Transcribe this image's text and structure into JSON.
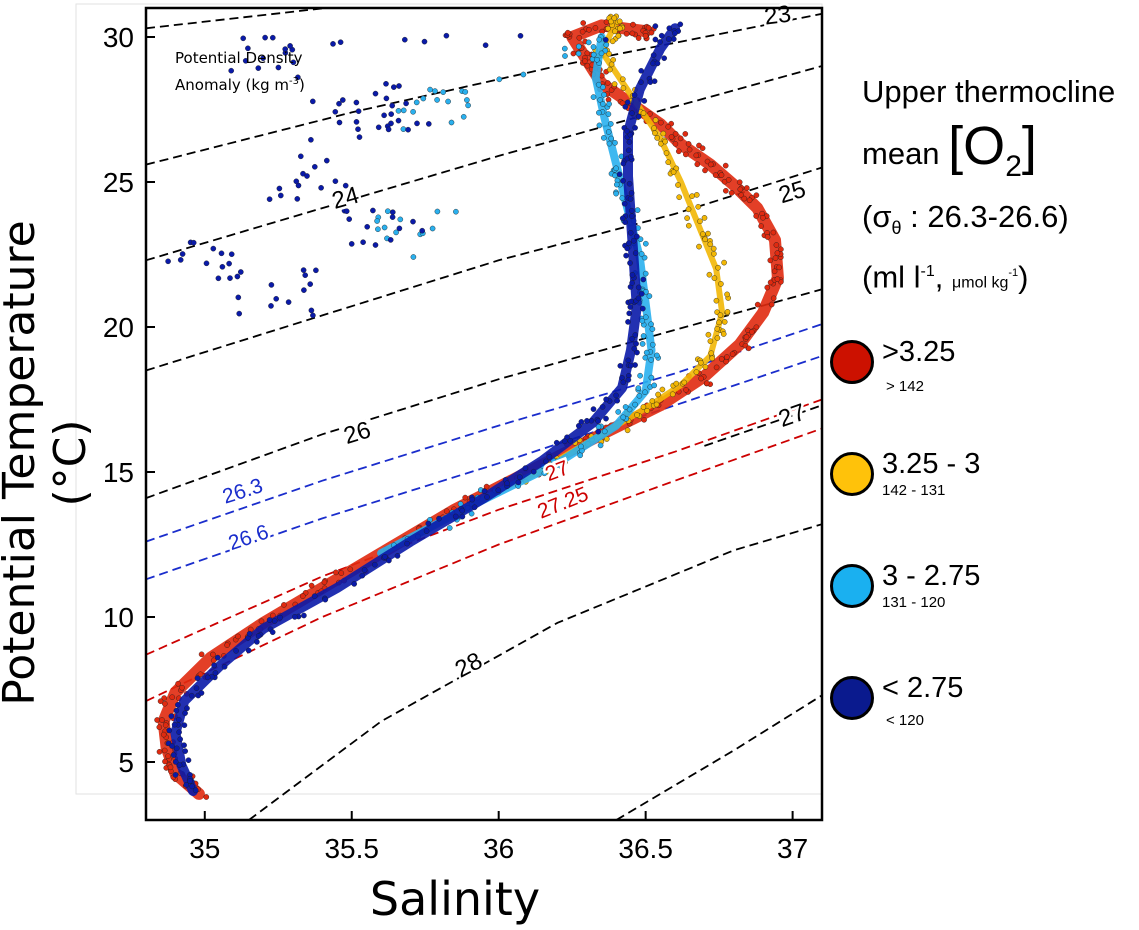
{
  "chart_data": {
    "type": "scatter",
    "title": "",
    "xlabel": "Salinity",
    "ylabel": "Potential Temperature (°C)",
    "xlim": [
      34.8,
      37.1
    ],
    "ylim": [
      3,
      31
    ],
    "x_ticks": [
      35,
      35.5,
      36,
      36.5,
      37
    ],
    "x_tick_labels": [
      "35",
      "35.5",
      "36",
      "36.5",
      "37"
    ],
    "y_ticks": [
      5,
      10,
      15,
      20,
      25,
      30
    ],
    "y_tick_labels": [
      "5",
      "10",
      "15",
      "20",
      "25",
      "30"
    ],
    "grid": false,
    "density_annotation": {
      "line1": "Potential Density",
      "line2": "Anomaly  (kg m",
      "sup": "-3",
      "close": ")"
    },
    "isopycnals": [
      {
        "label": "23",
        "color": "#000000",
        "points": [
          [
            34.8,
            30.3
          ],
          [
            35.5,
            31.1
          ],
          [
            36.1,
            31.5
          ],
          [
            36.7,
            32.6
          ],
          [
            37.1,
            33.2
          ]
        ],
        "label_at": [
          36.95,
          30.7
        ]
      },
      {
        "label": "",
        "color": "#000000",
        "points": [
          [
            34.8,
            25.6
          ],
          [
            35.5,
            27.4
          ],
          [
            36.2,
            29.0
          ],
          [
            36.9,
            30.4
          ],
          [
            37.1,
            30.8
          ]
        ]
      },
      {
        "label": "24",
        "color": "#000000",
        "points": [
          [
            34.8,
            22.3
          ],
          [
            35.4,
            24.1
          ],
          [
            36.0,
            25.9
          ],
          [
            36.6,
            27.6
          ],
          [
            37.1,
            29.0
          ]
        ],
        "label_at": [
          35.48,
          24.4
        ]
      },
      {
        "label": "25",
        "color": "#000000",
        "points": [
          [
            34.8,
            18.5
          ],
          [
            35.4,
            20.4
          ],
          [
            36.0,
            22.3
          ],
          [
            36.6,
            23.9
          ],
          [
            37.1,
            25.5
          ]
        ],
        "label_at": [
          37.0,
          24.6
        ]
      },
      {
        "label": "26",
        "color": "#000000",
        "points": [
          [
            34.8,
            14.1
          ],
          [
            35.4,
            16.3
          ],
          [
            36.0,
            18.2
          ],
          [
            36.6,
            19.9
          ],
          [
            37.1,
            21.3
          ]
        ],
        "label_at": [
          35.52,
          16.3
        ]
      },
      {
        "label": "26.3",
        "color": "#1a2dcc",
        "points": [
          [
            34.8,
            12.6
          ],
          [
            35.4,
            14.7
          ],
          [
            36.0,
            16.6
          ],
          [
            36.6,
            18.4
          ],
          [
            37.1,
            20.1
          ]
        ],
        "label_at": [
          35.13,
          14.3
        ]
      },
      {
        "label": "26.6",
        "color": "#1a2dcc",
        "points": [
          [
            34.8,
            11.3
          ],
          [
            35.4,
            13.4
          ],
          [
            36.0,
            15.3
          ],
          [
            36.6,
            17.3
          ],
          [
            37.1,
            19.0
          ]
        ],
        "label_at": [
          35.15,
          12.7
        ]
      },
      {
        "label": "27",
        "color": "#cc0000",
        "points": [
          [
            34.8,
            8.7
          ],
          [
            35.4,
            11.4
          ],
          [
            36.0,
            13.7
          ],
          [
            36.6,
            15.7
          ],
          [
            37.1,
            17.5
          ]
        ],
        "label_at": [
          36.2,
          15.0
        ]
      },
      {
        "label": "27.25",
        "color": "#cc0000",
        "points": [
          [
            34.8,
            7.1
          ],
          [
            35.4,
            10.0
          ],
          [
            36.0,
            12.5
          ],
          [
            36.6,
            14.7
          ],
          [
            37.1,
            16.5
          ]
        ],
        "label_at": [
          36.22,
          13.9
        ]
      },
      {
        "label": "27",
        "color": "#000000",
        "points": [
          [
            36.7,
            15.9
          ],
          [
            37.1,
            17.3
          ]
        ],
        "label_at": [
          37.0,
          16.9
        ]
      },
      {
        "label": "28",
        "color": "#000000",
        "points": [
          [
            35.15,
            3.0
          ],
          [
            35.6,
            6.4
          ],
          [
            36.2,
            9.8
          ],
          [
            36.8,
            12.3
          ],
          [
            37.1,
            13.2
          ]
        ],
        "label_at": [
          35.9,
          8.3
        ]
      },
      {
        "label": "",
        "color": "#000000",
        "points": [
          [
            36.4,
            3.0
          ],
          [
            36.8,
            5.4
          ],
          [
            37.1,
            7.3
          ]
        ]
      }
    ],
    "series": [
      {
        "name": ">3.25",
        "color": "#e02a10",
        "points": [
          [
            34.98,
            3.9
          ],
          [
            34.9,
            4.6
          ],
          [
            34.87,
            5.5
          ],
          [
            34.86,
            6.4
          ],
          [
            34.9,
            7.4
          ],
          [
            35.02,
            8.6
          ],
          [
            35.2,
            9.8
          ],
          [
            35.4,
            11.0
          ],
          [
            35.6,
            12.2
          ],
          [
            35.85,
            13.7
          ],
          [
            36.1,
            15.0
          ],
          [
            36.35,
            16.3
          ],
          [
            36.55,
            17.3
          ],
          [
            36.7,
            18.3
          ],
          [
            36.82,
            19.4
          ],
          [
            36.9,
            20.5
          ],
          [
            36.95,
            21.7
          ],
          [
            36.94,
            23.0
          ],
          [
            36.88,
            24.1
          ],
          [
            36.8,
            24.9
          ],
          [
            36.72,
            25.6
          ],
          [
            36.62,
            26.3
          ],
          [
            36.55,
            27.0
          ],
          [
            36.45,
            27.7
          ],
          [
            36.35,
            28.4
          ],
          [
            36.3,
            29.2
          ],
          [
            36.25,
            30.0
          ],
          [
            36.35,
            30.4
          ],
          [
            36.5,
            30.2
          ]
        ]
      },
      {
        "name": "3.25 - 3",
        "color": "#f2b705",
        "points": [
          [
            36.1,
            14.8
          ],
          [
            36.3,
            16.0
          ],
          [
            36.5,
            17.2
          ],
          [
            36.62,
            18.0
          ],
          [
            36.72,
            19.0
          ],
          [
            36.76,
            20.5
          ],
          [
            36.74,
            22.0
          ],
          [
            36.68,
            23.5
          ],
          [
            36.62,
            25.0
          ],
          [
            36.55,
            26.5
          ],
          [
            36.45,
            28.0
          ],
          [
            36.35,
            29.5
          ],
          [
            36.4,
            30.5
          ]
        ]
      },
      {
        "name": "3 - 2.75",
        "color": "#2ab0ee",
        "points": [
          [
            35.6,
            12.2
          ],
          [
            35.9,
            13.8
          ],
          [
            36.2,
            15.3
          ],
          [
            36.4,
            16.6
          ],
          [
            36.5,
            17.8
          ],
          [
            36.52,
            19.2
          ],
          [
            36.5,
            20.8
          ],
          [
            36.48,
            22.4
          ],
          [
            36.44,
            24.0
          ],
          [
            36.4,
            25.6
          ],
          [
            36.36,
            27.2
          ],
          [
            36.33,
            28.6
          ],
          [
            36.35,
            30.0
          ],
          [
            35.78,
            27.5
          ],
          [
            35.72,
            23.2
          ]
        ]
      },
      {
        "name": "< 2.75",
        "color": "#0a1aa8",
        "points": [
          [
            34.96,
            4.0
          ],
          [
            34.92,
            4.9
          ],
          [
            34.9,
            6.0
          ],
          [
            34.93,
            7.1
          ],
          [
            35.05,
            8.3
          ],
          [
            35.2,
            9.6
          ],
          [
            35.45,
            11.0
          ],
          [
            35.7,
            12.6
          ],
          [
            35.95,
            14.1
          ],
          [
            36.15,
            15.4
          ],
          [
            36.32,
            16.7
          ],
          [
            36.42,
            17.9
          ],
          [
            36.45,
            19.2
          ],
          [
            36.47,
            20.7
          ],
          [
            36.46,
            22.2
          ],
          [
            36.45,
            23.7
          ],
          [
            36.44,
            25.2
          ],
          [
            36.44,
            26.7
          ],
          [
            36.48,
            28.2
          ],
          [
            36.55,
            29.6
          ],
          [
            36.6,
            30.3
          ],
          [
            35.2,
            29.4
          ],
          [
            35.5,
            27.2
          ],
          [
            35.65,
            27.6
          ],
          [
            35.35,
            25.1
          ],
          [
            35.6,
            23.6
          ],
          [
            35.0,
            22.2
          ],
          [
            35.25,
            21.2
          ]
        ]
      }
    ]
  },
  "legend": {
    "title_line1": "Upper thermocline",
    "title_mean": "mean",
    "title_o2_open": "[O",
    "title_o2_sub": "2",
    "title_o2_close": "]",
    "sigma_open": "(σ",
    "sigma_sub": "θ",
    "sigma_range": " : 26.3-26.6)",
    "units_open": "(ml l",
    "units_sup": "-1",
    "units_comma": ", ",
    "units_umol": "μmol kg",
    "units_umol_sup": "-1",
    "units_close": ")",
    "items": [
      {
        "label": ">3.25",
        "umol": "> 142",
        "color": "#cc1100"
      },
      {
        "label": "3.25 - 3",
        "umol": "142 - 131",
        "color": "#ffc20a"
      },
      {
        "label": "3 - 2.75",
        "umol": "131 - 120",
        "color": "#1ab0f0"
      },
      {
        "label": "< 2.75",
        "umol": "< 120",
        "color": "#0a1a8e"
      }
    ]
  }
}
